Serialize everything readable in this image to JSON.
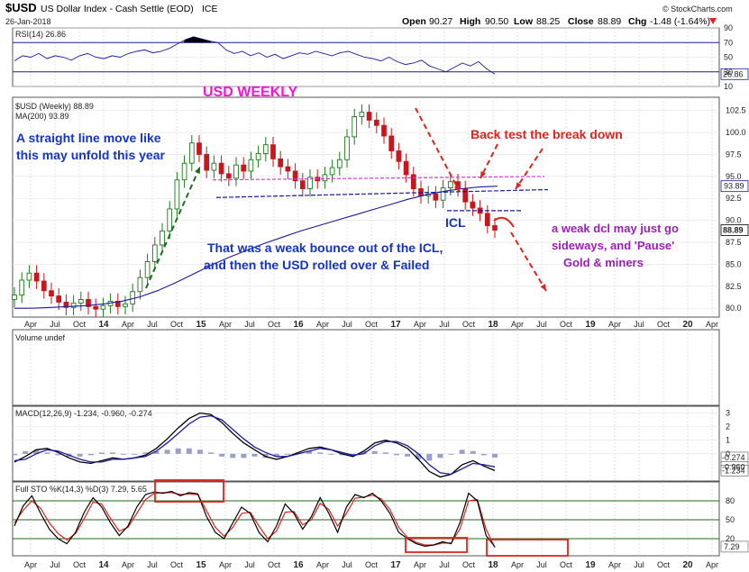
{
  "header": {
    "symbol": "$USD",
    "name": "US Dollar Index - Cash Settle (EOD)",
    "exchange": "ICE",
    "date": "26-Jan-2018",
    "source": "© StockCharts.com",
    "open_label": "Open",
    "open": "90.27",
    "high_label": "High",
    "high": "90.50",
    "low_label": "Low",
    "low": "88.25",
    "close_label": "Close",
    "close": "88.89",
    "chg_label": "Chg",
    "chg": "-1.48 (-1.64%)",
    "chg_icon": "down-triangle-icon"
  },
  "chart_data": [
    {
      "type": "line",
      "panel": "rsi",
      "legend": "RSI(14) 26.86",
      "ylim": [
        10,
        90
      ],
      "y_ticks": [
        90,
        70,
        50,
        30,
        10
      ],
      "guides": [
        70,
        30
      ],
      "current_label": "26.86",
      "series": [
        {
          "name": "RSI(14)",
          "color": "#1a1aa0",
          "values": [
            45,
            52,
            50,
            55,
            48,
            52,
            50,
            46,
            52,
            55,
            50,
            48,
            52,
            50,
            55,
            58,
            60,
            56,
            58,
            62,
            68,
            74,
            78,
            75,
            72,
            70,
            60,
            55,
            58,
            52,
            56,
            50,
            54,
            48,
            52,
            56,
            54,
            58,
            55,
            52,
            56,
            58,
            54,
            50,
            48,
            45,
            50,
            44,
            40,
            42,
            46,
            38,
            34,
            30,
            36,
            42,
            38,
            44,
            34,
            26.86
          ]
        }
      ]
    },
    {
      "type": "candlestick",
      "panel": "price",
      "title": "USD WEEKLY",
      "legend": [
        "$USD (Weekly) 88.89",
        "MA(200) 93.89"
      ],
      "ylim": [
        79,
        104
      ],
      "y_ticks": [
        "102.5",
        "100.0",
        "97.5",
        "95.0",
        "92.5",
        "90.0",
        "87.5",
        "85.0",
        "82.5",
        "80.0"
      ],
      "x_ticks": [
        "Apr",
        "Jul",
        "Oct",
        "14",
        "Apr",
        "Jul",
        "Oct",
        "15",
        "Apr",
        "Jul",
        "Oct",
        "16",
        "Apr",
        "Jul",
        "Oct",
        "17",
        "Apr",
        "Jul",
        "Oct",
        "18",
        "Apr",
        "Jul",
        "Oct",
        "19",
        "Apr",
        "Jul",
        "Oct",
        "20",
        "Apr"
      ],
      "price_labels": [
        {
          "text": "93.89",
          "color": "#1a1aa0"
        },
        {
          "text": "88.89",
          "color": "#000000"
        }
      ],
      "close_series": [
        81.5,
        83.2,
        84.0,
        83.1,
        82.0,
        81.4,
        80.7,
        80.1,
        80.6,
        81.0,
        80.2,
        79.9,
        80.3,
        80.8,
        80.2,
        80.5,
        81.9,
        83.5,
        85.3,
        87.2,
        88.8,
        91.3,
        94.6,
        96.5,
        98.8,
        97.5,
        95.7,
        96.5,
        95.3,
        94.8,
        96.3,
        95.6,
        96.9,
        97.6,
        98.6,
        97.0,
        96.1,
        95.6,
        94.5,
        93.6,
        94.9,
        94.5,
        95.2,
        96.0,
        96.9,
        99.5,
        101.8,
        102.3,
        101.4,
        100.8,
        99.6,
        97.9,
        96.7,
        95.2,
        93.6,
        92.8,
        93.0,
        92.3,
        93.7,
        94.4,
        93.6,
        92.1,
        91.4,
        90.8,
        89.4,
        88.89
      ],
      "ma200": {
        "name": "MA(200)",
        "values": [
          80.0,
          80.0,
          80.1,
          80.2,
          80.3,
          80.5,
          80.8,
          81.3,
          82.0,
          82.9,
          83.9,
          84.9,
          85.8,
          86.6,
          87.4,
          88.1,
          88.8,
          89.4,
          90.0,
          90.6,
          91.2,
          91.8,
          92.4,
          92.9,
          93.3,
          93.6,
          93.8,
          93.89
        ]
      },
      "annotations": [
        {
          "text": "A straight line move like",
          "color": "#1433c8"
        },
        {
          "text": "this may unfold this year",
          "color": "#1433c8"
        },
        {
          "text": "That was a weak bounce out of the ICL,",
          "color": "#1433c8"
        },
        {
          "text": "and then the USD rolled over & Failed",
          "color": "#1433c8"
        },
        {
          "text": "Back test the break down",
          "color": "#e0241b"
        },
        {
          "text": "ICL",
          "color": "#1433c8"
        },
        {
          "text": "a weak dcl may just go",
          "color": "#9b1fb5"
        },
        {
          "text": "sideways,  and 'Pause'",
          "color": "#9b1fb5"
        },
        {
          "text": "Gold & miners",
          "color": "#9b1fb5"
        }
      ]
    },
    {
      "type": "bar",
      "panel": "volume",
      "legend": "Volume undef"
    },
    {
      "type": "line",
      "panel": "macd",
      "legend": "MACD(12,26,9) -1.234, -0.960, -0.274",
      "ylim": [
        -2,
        3.5
      ],
      "y_ticks": [
        "3",
        "2",
        "1",
        "0"
      ],
      "price_labels": [
        "-0.274",
        "-0.960",
        "-1.234"
      ],
      "series": [
        {
          "name": "MACD",
          "color": "#000000",
          "values": [
            -0.6,
            -0.2,
            0.3,
            0.4,
            0.1,
            -0.3,
            -0.6,
            -0.7,
            -0.5,
            -0.3,
            -0.4,
            -0.3,
            -0.1,
            0.4,
            1.1,
            1.9,
            2.6,
            3.0,
            2.9,
            2.3,
            1.5,
            0.8,
            0.3,
            -0.2,
            -0.4,
            -0.2,
            0.1,
            0.4,
            0.5,
            0.3,
            0.0,
            -0.2,
            0.2,
            0.8,
            1.0,
            0.8,
            0.4,
            -0.4,
            -1.3,
            -1.7,
            -1.5,
            -0.8,
            -0.5,
            -0.9,
            -1.234
          ]
        },
        {
          "name": "Signal",
          "color": "#1a1aa0",
          "values": [
            -0.5,
            -0.4,
            0.0,
            0.3,
            0.2,
            -0.1,
            -0.4,
            -0.6,
            -0.6,
            -0.4,
            -0.4,
            -0.3,
            -0.2,
            0.2,
            0.8,
            1.5,
            2.2,
            2.7,
            2.8,
            2.5,
            1.8,
            1.1,
            0.5,
            0.1,
            -0.2,
            -0.2,
            0.0,
            0.2,
            0.4,
            0.3,
            0.1,
            -0.1,
            0.0,
            0.6,
            0.9,
            0.9,
            0.6,
            0.0,
            -0.8,
            -1.4,
            -1.5,
            -1.1,
            -0.7,
            -0.8,
            -0.96
          ]
        }
      ],
      "histogram": [
        -0.1,
        0.2,
        0.3,
        0.1,
        -0.1,
        -0.2,
        -0.2,
        -0.1,
        0.1,
        0.1,
        0.0,
        0.0,
        0.1,
        0.2,
        0.3,
        0.4,
        0.4,
        0.3,
        0.1,
        -0.2,
        -0.3,
        -0.3,
        -0.2,
        -0.3,
        -0.2,
        0.0,
        0.1,
        0.2,
        0.1,
        0.0,
        -0.1,
        -0.1,
        0.2,
        0.2,
        0.1,
        -0.1,
        -0.2,
        -0.4,
        -0.5,
        -0.3,
        0.0,
        0.3,
        0.2,
        -0.1,
        -0.274
      ]
    },
    {
      "type": "line",
      "panel": "stochastic",
      "legend": "Full STO %K(14,3) %D(3) 7.29, 5.65",
      "ylim": [
        0,
        100
      ],
      "y_ticks": [
        80,
        50,
        20
      ],
      "guides": [
        80,
        50,
        20
      ],
      "current_label": "7.29",
      "series": [
        {
          "name": "%K",
          "color": "#000000",
          "values": [
            40,
            72,
            88,
            60,
            35,
            20,
            12,
            30,
            62,
            85,
            70,
            45,
            25,
            40,
            70,
            90,
            94,
            92,
            95,
            88,
            93,
            91,
            55,
            30,
            20,
            45,
            70,
            60,
            30,
            15,
            40,
            75,
            60,
            35,
            55,
            85,
            60,
            30,
            70,
            90,
            85,
            92,
            80,
            60,
            30,
            20,
            12,
            8,
            10,
            15,
            12,
            45,
            92,
            80,
            25,
            7.29
          ]
        },
        {
          "name": "%D",
          "color": "#e0241b",
          "values": [
            45,
            65,
            80,
            68,
            45,
            28,
            18,
            28,
            52,
            78,
            75,
            52,
            32,
            38,
            60,
            82,
            92,
            93,
            93,
            90,
            91,
            90,
            64,
            38,
            24,
            38,
            60,
            62,
            40,
            20,
            32,
            62,
            63,
            42,
            50,
            76,
            66,
            40,
            60,
            84,
            86,
            89,
            83,
            66,
            38,
            22,
            14,
            10,
            10,
            13,
            13,
            35,
            80,
            82,
            35,
            5.65
          ]
        }
      ]
    }
  ]
}
